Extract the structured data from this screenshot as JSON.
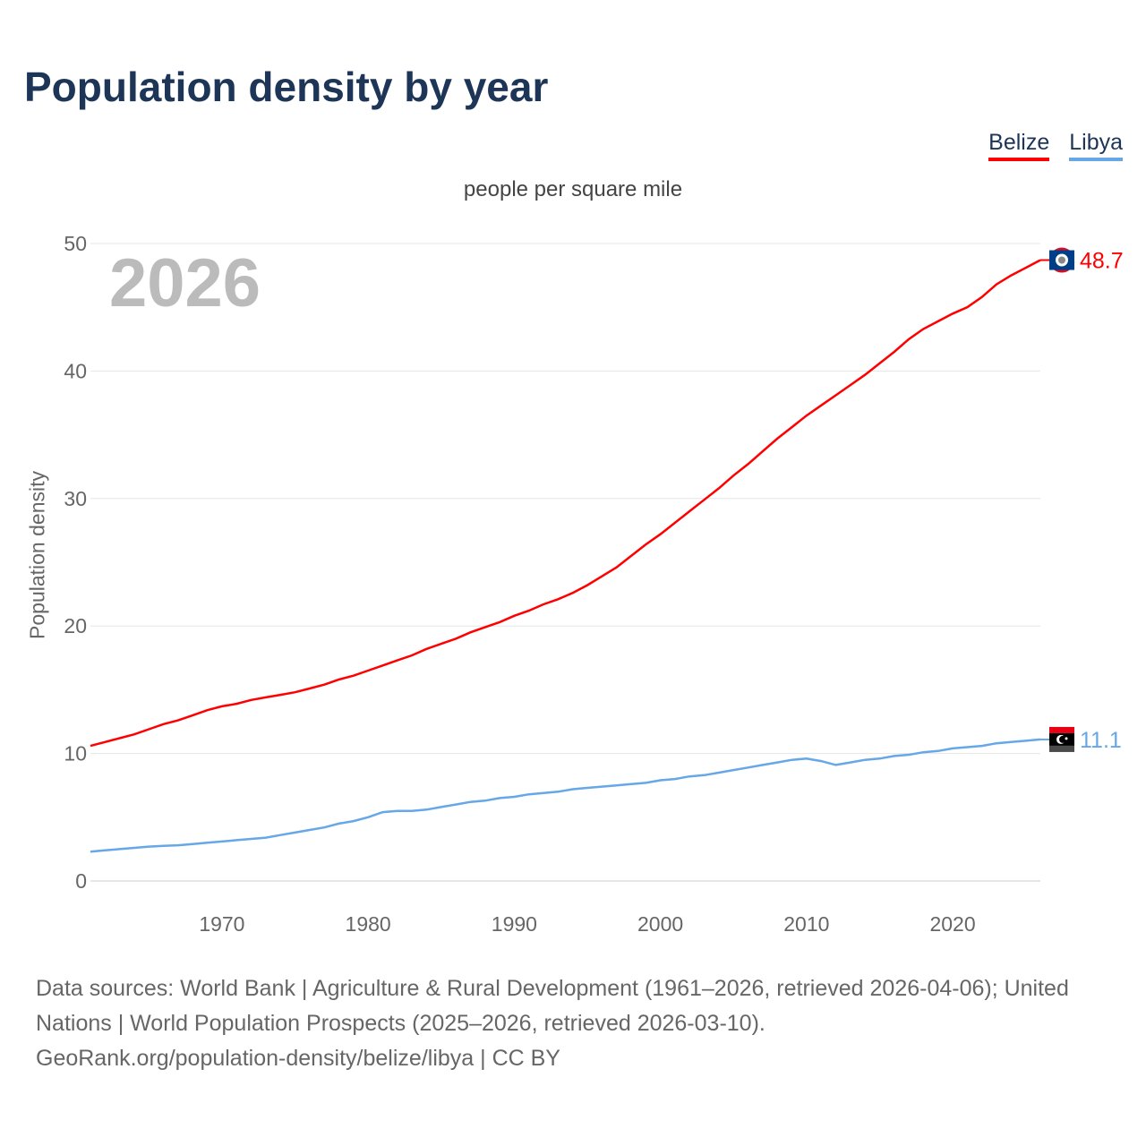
{
  "chart_data": {
    "type": "line",
    "title": "Population density by year",
    "subtitle": "people per square mile",
    "ylabel": "Population density",
    "xlabel": "",
    "year_watermark": "2026",
    "xlim": [
      1961,
      2026
    ],
    "ylim": [
      0,
      50
    ],
    "xticks": [
      1970,
      1980,
      1990,
      2000,
      2010,
      2020
    ],
    "yticks": [
      0,
      10,
      20,
      30,
      40,
      50
    ],
    "grid": true,
    "legend_position": "top-right",
    "x": [
      1961,
      1962,
      1963,
      1964,
      1965,
      1966,
      1967,
      1968,
      1969,
      1970,
      1971,
      1972,
      1973,
      1974,
      1975,
      1976,
      1977,
      1978,
      1979,
      1980,
      1981,
      1982,
      1983,
      1984,
      1985,
      1986,
      1987,
      1988,
      1989,
      1990,
      1991,
      1992,
      1993,
      1994,
      1995,
      1996,
      1997,
      1998,
      1999,
      2000,
      2001,
      2002,
      2003,
      2004,
      2005,
      2006,
      2007,
      2008,
      2009,
      2010,
      2011,
      2012,
      2013,
      2014,
      2015,
      2016,
      2017,
      2018,
      2019,
      2020,
      2021,
      2022,
      2023,
      2024,
      2025,
      2026
    ],
    "series": [
      {
        "name": "Belize",
        "color": "#ff0000",
        "end_label": "48.7",
        "flag": "belize-flag",
        "values": [
          10.6,
          10.9,
          11.2,
          11.5,
          11.9,
          12.3,
          12.6,
          13.0,
          13.4,
          13.7,
          13.9,
          14.2,
          14.4,
          14.6,
          14.8,
          15.1,
          15.4,
          15.8,
          16.1,
          16.5,
          16.9,
          17.3,
          17.7,
          18.2,
          18.6,
          19.0,
          19.5,
          19.9,
          20.3,
          20.8,
          21.2,
          21.7,
          22.1,
          22.6,
          23.2,
          23.9,
          24.6,
          25.5,
          26.4,
          27.2,
          28.1,
          29.0,
          29.9,
          30.8,
          31.8,
          32.7,
          33.7,
          34.7,
          35.6,
          36.5,
          37.3,
          38.1,
          38.9,
          39.7,
          40.6,
          41.5,
          42.5,
          43.3,
          43.9,
          44.5,
          45.0,
          45.8,
          46.8,
          47.5,
          48.1,
          48.7
        ]
      },
      {
        "name": "Libya",
        "color": "#66a7e8",
        "end_label": "11.1",
        "flag": "libya-flag",
        "values": [
          2.3,
          2.4,
          2.5,
          2.6,
          2.7,
          2.75,
          2.8,
          2.9,
          3.0,
          3.1,
          3.2,
          3.3,
          3.4,
          3.6,
          3.8,
          4.0,
          4.2,
          4.5,
          4.7,
          5.0,
          5.4,
          5.5,
          5.5,
          5.6,
          5.8,
          6.0,
          6.2,
          6.3,
          6.5,
          6.6,
          6.8,
          6.9,
          7.0,
          7.2,
          7.3,
          7.4,
          7.5,
          7.6,
          7.7,
          7.9,
          8.0,
          8.2,
          8.3,
          8.5,
          8.7,
          8.9,
          9.1,
          9.3,
          9.5,
          9.6,
          9.4,
          9.1,
          9.3,
          9.5,
          9.6,
          9.8,
          9.9,
          10.1,
          10.2,
          10.4,
          10.5,
          10.6,
          10.8,
          10.9,
          11.0,
          11.1
        ]
      }
    ]
  },
  "footer": {
    "sources": "Data sources: World Bank | Agriculture & Rural Development (1961–2026, retrieved 2026-04-06); United Nations | World Population Prospects (2025–2026, retrieved 2026-03-10).",
    "link": "GeoRank.org/population-density/belize/libya | CC BY"
  }
}
